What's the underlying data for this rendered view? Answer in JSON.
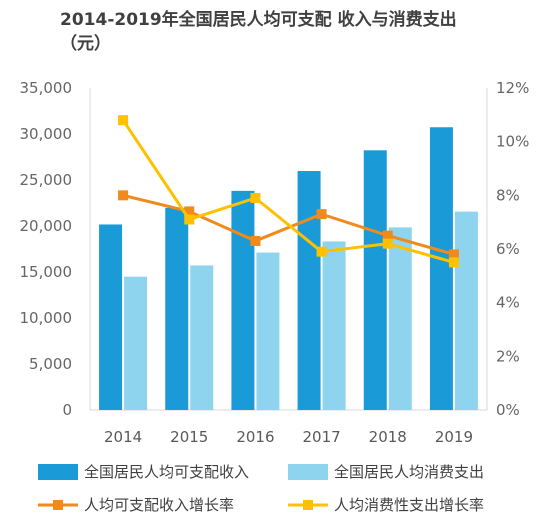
{
  "chart_data": {
    "type": "bar",
    "title": "2014-2019年全国居民人均可支配 收入与消费支出（元）",
    "categories": [
      "2014",
      "2015",
      "2016",
      "2017",
      "2018",
      "2019"
    ],
    "y_left": {
      "ylim": [
        0,
        35000
      ],
      "ticks": [
        "0",
        "5,000",
        "10,000",
        "15,000",
        "20,000",
        "25,000",
        "30,000",
        "35,000"
      ]
    },
    "y_right": {
      "ylim": [
        0,
        12
      ],
      "ticks": [
        "0%",
        "2%",
        "4%",
        "6%",
        "8%",
        "10%",
        "12%"
      ]
    },
    "series": [
      {
        "name": "全国居民人均可支配收入",
        "type": "bar",
        "axis": "left",
        "color": "#1a9bd7",
        "values": [
          20167,
          21966,
          23821,
          25974,
          28228,
          30733
        ]
      },
      {
        "name": "全国居民人均消费支出",
        "type": "bar",
        "axis": "left",
        "color": "#8fd4ef",
        "values": [
          14491,
          15712,
          17111,
          18322,
          19853,
          21559
        ]
      },
      {
        "name": "人均可支配收入增长率",
        "type": "line",
        "axis": "right",
        "color": "#f08a1c",
        "marker": "square",
        "values": [
          8.0,
          7.4,
          6.3,
          7.3,
          6.5,
          5.8
        ]
      },
      {
        "name": "人均消费性支出增长率",
        "type": "line",
        "axis": "right",
        "color": "#ffc000",
        "marker": "square",
        "values": [
          10.8,
          7.1,
          7.9,
          5.9,
          6.2,
          5.5
        ]
      }
    ],
    "legend": "bottom",
    "grid": false
  }
}
